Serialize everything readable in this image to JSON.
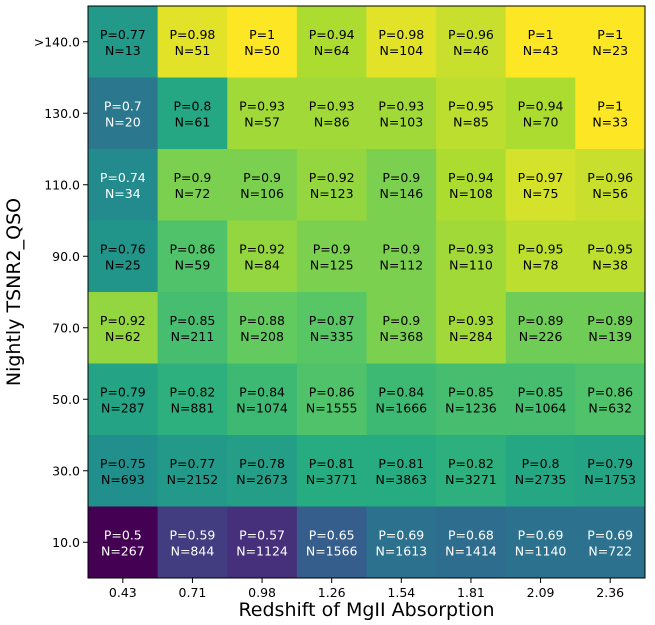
{
  "chart_data": {
    "type": "heatmap",
    "xlabel": "Redshift of MgII Absorption",
    "ylabel": "Nightly TSNR2_QSO",
    "x_categories": [
      "0.43",
      "0.71",
      "0.98",
      "1.26",
      "1.54",
      "1.81",
      "2.09",
      "2.36"
    ],
    "y_categories": [
      ">140.0",
      "130.0",
      "110.0",
      "90.0",
      "70.0",
      "50.0",
      "30.0",
      "10.0"
    ],
    "colormap": "viridis",
    "color_range": [
      0.5,
      1.0
    ],
    "cells": [
      [
        {
          "p": 0.77,
          "n": 13
        },
        {
          "p": 0.98,
          "n": 51
        },
        {
          "p": 1.0,
          "n": 50
        },
        {
          "p": 0.94,
          "n": 64
        },
        {
          "p": 0.98,
          "n": 104
        },
        {
          "p": 0.96,
          "n": 46
        },
        {
          "p": 1.0,
          "n": 43
        },
        {
          "p": 1.0,
          "n": 23
        }
      ],
      [
        {
          "p": 0.7,
          "n": 20
        },
        {
          "p": 0.8,
          "n": 61
        },
        {
          "p": 0.93,
          "n": 57
        },
        {
          "p": 0.93,
          "n": 86
        },
        {
          "p": 0.93,
          "n": 103
        },
        {
          "p": 0.95,
          "n": 85
        },
        {
          "p": 0.94,
          "n": 70
        },
        {
          "p": 1.0,
          "n": 33
        }
      ],
      [
        {
          "p": 0.74,
          "n": 34
        },
        {
          "p": 0.9,
          "n": 72
        },
        {
          "p": 0.9,
          "n": 106
        },
        {
          "p": 0.92,
          "n": 123
        },
        {
          "p": 0.9,
          "n": 146
        },
        {
          "p": 0.94,
          "n": 108
        },
        {
          "p": 0.97,
          "n": 75
        },
        {
          "p": 0.96,
          "n": 56
        }
      ],
      [
        {
          "p": 0.76,
          "n": 25
        },
        {
          "p": 0.86,
          "n": 59
        },
        {
          "p": 0.92,
          "n": 84
        },
        {
          "p": 0.9,
          "n": 125
        },
        {
          "p": 0.9,
          "n": 112
        },
        {
          "p": 0.93,
          "n": 110
        },
        {
          "p": 0.95,
          "n": 78
        },
        {
          "p": 0.95,
          "n": 38
        }
      ],
      [
        {
          "p": 0.92,
          "n": 62
        },
        {
          "p": 0.85,
          "n": 211
        },
        {
          "p": 0.88,
          "n": 208
        },
        {
          "p": 0.87,
          "n": 335
        },
        {
          "p": 0.9,
          "n": 368
        },
        {
          "p": 0.93,
          "n": 284
        },
        {
          "p": 0.89,
          "n": 226
        },
        {
          "p": 0.89,
          "n": 139
        }
      ],
      [
        {
          "p": 0.79,
          "n": 287
        },
        {
          "p": 0.82,
          "n": 881
        },
        {
          "p": 0.84,
          "n": 1074
        },
        {
          "p": 0.86,
          "n": 1555
        },
        {
          "p": 0.84,
          "n": 1666
        },
        {
          "p": 0.85,
          "n": 1236
        },
        {
          "p": 0.85,
          "n": 1064
        },
        {
          "p": 0.86,
          "n": 632
        }
      ],
      [
        {
          "p": 0.75,
          "n": 693
        },
        {
          "p": 0.77,
          "n": 2152
        },
        {
          "p": 0.78,
          "n": 2673
        },
        {
          "p": 0.81,
          "n": 3771
        },
        {
          "p": 0.81,
          "n": 3863
        },
        {
          "p": 0.82,
          "n": 3271
        },
        {
          "p": 0.8,
          "n": 2735
        },
        {
          "p": 0.79,
          "n": 1753
        }
      ],
      [
        {
          "p": 0.5,
          "n": 267
        },
        {
          "p": 0.59,
          "n": 844
        },
        {
          "p": 0.57,
          "n": 1124
        },
        {
          "p": 0.65,
          "n": 1566
        },
        {
          "p": 0.69,
          "n": 1613
        },
        {
          "p": 0.68,
          "n": 1414
        },
        {
          "p": 0.69,
          "n": 1140
        },
        {
          "p": 0.69,
          "n": 722
        }
      ]
    ]
  }
}
